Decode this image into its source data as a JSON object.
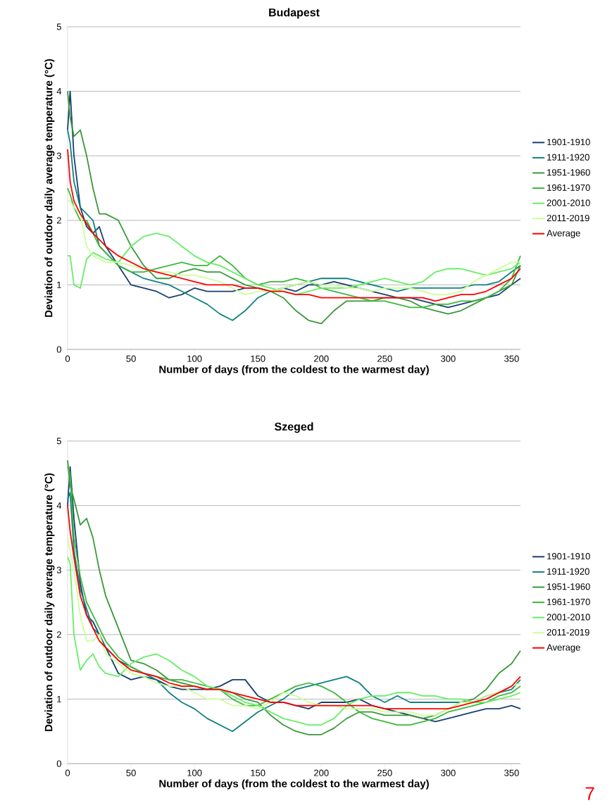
{
  "chart_data": [
    {
      "type": "line",
      "title": "Budapest",
      "xlabel": "Number of days (from the coldest to the warmest day)",
      "ylabel": "Deviation of outdoor daily average temperature (°C)",
      "xlim": [
        0,
        357
      ],
      "ylim": [
        0,
        5
      ],
      "xticks": [
        0,
        50,
        100,
        150,
        200,
        250,
        300,
        350
      ],
      "yticks": [
        0,
        1,
        2,
        3,
        4,
        5
      ],
      "grid": "y",
      "legend": "right",
      "x": [
        0,
        2,
        5,
        10,
        15,
        20,
        25,
        30,
        40,
        50,
        60,
        70,
        80,
        90,
        100,
        110,
        120,
        130,
        140,
        150,
        160,
        170,
        180,
        190,
        200,
        210,
        220,
        230,
        240,
        250,
        260,
        270,
        280,
        290,
        300,
        310,
        320,
        330,
        340,
        350,
        357
      ],
      "series": [
        {
          "name": "1901-1910",
          "color": "#173f6e",
          "values": [
            3.4,
            4.0,
            3.0,
            2.2,
            1.9,
            1.8,
            1.9,
            1.6,
            1.3,
            1.0,
            0.95,
            0.9,
            0.8,
            0.85,
            0.95,
            0.9,
            0.9,
            0.9,
            0.95,
            0.95,
            0.9,
            0.95,
            0.9,
            1.0,
            1.0,
            1.05,
            1.0,
            0.95,
            0.9,
            0.85,
            0.8,
            0.8,
            0.75,
            0.7,
            0.65,
            0.7,
            0.75,
            0.8,
            0.85,
            1.0,
            1.1
          ]
        },
        {
          "name": "1911-1920",
          "color": "#128080",
          "values": [
            3.4,
            3.2,
            2.6,
            2.2,
            2.1,
            2.0,
            1.6,
            1.5,
            1.3,
            1.2,
            1.1,
            1.05,
            1.0,
            0.9,
            0.8,
            0.7,
            0.55,
            0.45,
            0.6,
            0.8,
            0.9,
            0.95,
            1.0,
            1.05,
            1.1,
            1.1,
            1.1,
            1.05,
            1.0,
            0.95,
            0.9,
            0.95,
            0.95,
            0.95,
            0.95,
            0.95,
            1.0,
            1.0,
            1.05,
            1.2,
            1.3
          ]
        },
        {
          "name": "1951-1960",
          "color": "#3a983a",
          "values": [
            4.0,
            3.6,
            3.3,
            3.4,
            3.0,
            2.5,
            2.1,
            2.1,
            2.0,
            1.6,
            1.3,
            1.1,
            1.1,
            1.2,
            1.25,
            1.2,
            1.2,
            1.1,
            1.0,
            0.95,
            0.9,
            0.8,
            0.6,
            0.45,
            0.4,
            0.6,
            0.75,
            0.75,
            0.75,
            0.8,
            0.8,
            0.75,
            0.65,
            0.6,
            0.55,
            0.6,
            0.7,
            0.8,
            0.9,
            1.0,
            1.3
          ]
        },
        {
          "name": "1961-1970",
          "color": "#3cb83c",
          "values": [
            2.5,
            2.4,
            2.2,
            2.0,
            2.0,
            1.8,
            1.6,
            1.5,
            1.3,
            1.2,
            1.2,
            1.25,
            1.3,
            1.35,
            1.3,
            1.3,
            1.45,
            1.3,
            1.1,
            1.0,
            1.05,
            1.05,
            1.1,
            1.05,
            0.95,
            0.9,
            0.85,
            0.8,
            0.75,
            0.75,
            0.7,
            0.65,
            0.65,
            0.7,
            0.7,
            0.75,
            0.75,
            0.8,
            0.9,
            1.1,
            1.45
          ]
        },
        {
          "name": "2001-2010",
          "color": "#66ee66",
          "values": [
            1.45,
            1.45,
            1.0,
            0.95,
            1.4,
            1.5,
            1.45,
            1.4,
            1.35,
            1.6,
            1.75,
            1.8,
            1.75,
            1.6,
            1.45,
            1.35,
            1.3,
            1.2,
            1.1,
            1.0,
            0.95,
            0.9,
            0.85,
            0.9,
            0.95,
            0.95,
            0.95,
            1.0,
            1.05,
            1.1,
            1.05,
            1.0,
            1.05,
            1.2,
            1.25,
            1.25,
            1.2,
            1.15,
            1.2,
            1.25,
            1.35
          ]
        },
        {
          "name": "2011-2019",
          "color": "#ccff99",
          "values": [
            2.3,
            2.3,
            2.2,
            2.1,
            1.6,
            1.45,
            1.4,
            1.35,
            1.35,
            1.3,
            1.25,
            1.2,
            1.2,
            1.15,
            1.15,
            1.1,
            1.05,
            0.95,
            0.85,
            0.9,
            0.9,
            0.95,
            1.0,
            1.05,
            1.0,
            1.0,
            0.95,
            0.95,
            0.9,
            0.95,
            0.95,
            0.95,
            0.9,
            0.85,
            0.85,
            0.9,
            1.05,
            1.15,
            1.25,
            1.35,
            1.35
          ]
        },
        {
          "name": "Average",
          "color": "#ff0000",
          "values": [
            3.1,
            2.6,
            2.3,
            2.1,
            1.95,
            1.8,
            1.7,
            1.6,
            1.45,
            1.35,
            1.25,
            1.2,
            1.15,
            1.1,
            1.05,
            1.0,
            1.0,
            1.0,
            0.95,
            0.95,
            0.9,
            0.9,
            0.85,
            0.85,
            0.8,
            0.8,
            0.8,
            0.8,
            0.8,
            0.8,
            0.8,
            0.8,
            0.8,
            0.75,
            0.8,
            0.85,
            0.85,
            0.9,
            1.0,
            1.1,
            1.25
          ]
        }
      ]
    },
    {
      "type": "line",
      "title": "Szeged",
      "xlabel": "Number of days (from the coldest to the warmest day)",
      "ylabel": "Deviation of outdoor daily average temperature (°C)",
      "xlim": [
        0,
        357
      ],
      "ylim": [
        0,
        5
      ],
      "xticks": [
        0,
        50,
        100,
        150,
        200,
        250,
        300,
        350
      ],
      "yticks": [
        0,
        1,
        2,
        3,
        4,
        5
      ],
      "grid": "y",
      "legend": "right",
      "annotations": [
        "7"
      ],
      "x": [
        0,
        2,
        5,
        10,
        15,
        20,
        25,
        30,
        40,
        50,
        60,
        70,
        80,
        90,
        100,
        110,
        120,
        130,
        140,
        150,
        160,
        170,
        180,
        190,
        200,
        210,
        220,
        230,
        240,
        250,
        260,
        270,
        280,
        290,
        300,
        310,
        320,
        330,
        340,
        350,
        357
      ],
      "series": [
        {
          "name": "1901-1910",
          "color": "#173f6e",
          "values": [
            4.0,
            4.6,
            3.8,
            2.8,
            2.3,
            2.2,
            2.0,
            1.8,
            1.4,
            1.3,
            1.35,
            1.3,
            1.2,
            1.15,
            1.15,
            1.15,
            1.2,
            1.3,
            1.3,
            1.05,
            0.95,
            0.95,
            0.9,
            0.85,
            0.95,
            0.95,
            0.95,
            1.0,
            0.9,
            0.85,
            0.8,
            0.75,
            0.7,
            0.65,
            0.7,
            0.75,
            0.8,
            0.85,
            0.85,
            0.9,
            0.85
          ]
        },
        {
          "name": "1911-1920",
          "color": "#128080",
          "values": [
            4.1,
            4.2,
            3.3,
            2.7,
            2.4,
            2.1,
            2.0,
            1.8,
            1.6,
            1.5,
            1.4,
            1.3,
            1.1,
            0.95,
            0.85,
            0.7,
            0.6,
            0.5,
            0.65,
            0.8,
            0.9,
            1.0,
            1.15,
            1.2,
            1.25,
            1.3,
            1.35,
            1.25,
            1.05,
            0.95,
            1.05,
            0.95,
            0.95,
            0.95,
            0.95,
            0.95,
            0.95,
            1.05,
            1.1,
            1.15,
            1.3
          ]
        },
        {
          "name": "1951-1960",
          "color": "#3a983a",
          "values": [
            4.7,
            4.3,
            4.1,
            3.7,
            3.8,
            3.5,
            3.0,
            2.6,
            2.1,
            1.6,
            1.55,
            1.45,
            1.3,
            1.25,
            1.2,
            1.15,
            1.15,
            1.1,
            1.0,
            0.95,
            0.75,
            0.6,
            0.5,
            0.45,
            0.45,
            0.55,
            0.7,
            0.8,
            0.8,
            0.75,
            0.75,
            0.75,
            0.7,
            0.75,
            0.85,
            0.95,
            1.0,
            1.15,
            1.4,
            1.55,
            1.75
          ]
        },
        {
          "name": "1961-1970",
          "color": "#3cb83c",
          "values": [
            4.6,
            4.5,
            3.5,
            2.9,
            2.5,
            2.3,
            2.1,
            1.9,
            1.65,
            1.5,
            1.4,
            1.35,
            1.3,
            1.3,
            1.25,
            1.2,
            1.15,
            1.0,
            0.9,
            0.9,
            1.0,
            1.1,
            1.2,
            1.25,
            1.2,
            1.1,
            0.95,
            0.8,
            0.7,
            0.65,
            0.6,
            0.6,
            0.65,
            0.7,
            0.8,
            0.85,
            0.9,
            0.95,
            1.05,
            1.1,
            1.2
          ]
        },
        {
          "name": "2001-2010",
          "color": "#66ee66",
          "values": [
            3.2,
            3.1,
            2.0,
            1.45,
            1.6,
            1.7,
            1.5,
            1.4,
            1.35,
            1.55,
            1.65,
            1.7,
            1.6,
            1.45,
            1.35,
            1.2,
            1.15,
            1.05,
            0.95,
            0.9,
            0.8,
            0.7,
            0.65,
            0.6,
            0.6,
            0.7,
            0.9,
            1.0,
            1.05,
            1.05,
            1.1,
            1.1,
            1.05,
            1.05,
            1.0,
            1.0,
            0.95,
            0.95,
            1.0,
            1.05,
            1.1
          ]
        },
        {
          "name": "2011-2019",
          "color": "#ccff99",
          "values": [
            3.5,
            3.3,
            3.0,
            2.3,
            1.9,
            1.9,
            2.0,
            1.7,
            1.55,
            1.4,
            1.35,
            1.25,
            1.2,
            1.2,
            1.1,
            1.0,
            1.0,
            0.9,
            0.9,
            0.85,
            0.95,
            1.1,
            1.05,
            0.95,
            0.9,
            0.9,
            0.85,
            0.85,
            0.85,
            0.8,
            0.8,
            0.8,
            0.75,
            0.75,
            0.85,
            0.95,
            0.95,
            1.05,
            1.1,
            1.2,
            1.25
          ]
        },
        {
          "name": "Average",
          "color": "#ff0000",
          "values": [
            4.0,
            3.6,
            3.2,
            2.6,
            2.3,
            2.1,
            1.9,
            1.8,
            1.6,
            1.45,
            1.4,
            1.35,
            1.25,
            1.2,
            1.2,
            1.15,
            1.15,
            1.1,
            1.05,
            1.0,
            0.95,
            0.95,
            0.9,
            0.9,
            0.9,
            0.9,
            0.9,
            0.9,
            0.9,
            0.85,
            0.85,
            0.85,
            0.85,
            0.85,
            0.85,
            0.9,
            0.95,
            1.0,
            1.1,
            1.2,
            1.35
          ]
        }
      ]
    }
  ]
}
